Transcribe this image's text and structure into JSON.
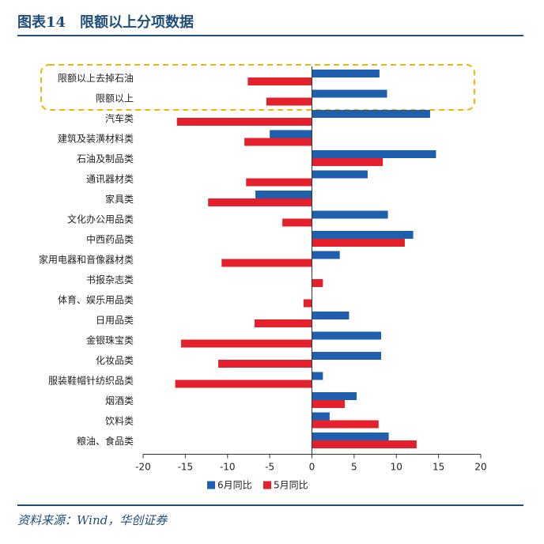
{
  "header": {
    "title": "图表14　限额以上分项数据"
  },
  "source": "资料来源：Wind，华创证券",
  "colors": {
    "june": "#1f5fad",
    "may": "#e3202b",
    "highlight": "#f2b705",
    "axis": "#333333",
    "brand": "#1f4e79"
  },
  "chart_data": {
    "type": "bar",
    "orientation": "horizontal",
    "title": "限额以上分项数据",
    "xlim": [
      -20,
      20
    ],
    "xticks": [
      -20,
      -15,
      -10,
      -5,
      0,
      5,
      10,
      15,
      20
    ],
    "legend_position": "bottom",
    "highlighted_categories": [
      "限额以上去掉石油",
      "限额以上"
    ],
    "categories": [
      "限额以上去掉石油",
      "限额以上",
      "汽车类",
      "建筑及装潢材料类",
      "石油及制品类",
      "通讯器材类",
      "家具类",
      "文化办公用品类",
      "中西药品类",
      "家用电器和音像器材类",
      "书报杂志类",
      "体育、娱乐用品类",
      "日用品类",
      "金银珠宝类",
      "化妆品类",
      "服装鞋帽针纺织品类",
      "烟酒类",
      "饮料类",
      "粮油、食品类"
    ],
    "series": [
      {
        "name": "6月同比",
        "values": [
          8.0,
          8.9,
          14.0,
          -5.0,
          14.7,
          6.6,
          -6.7,
          9.0,
          12.0,
          3.3,
          0.0,
          0.0,
          4.4,
          8.2,
          8.2,
          1.3,
          5.3,
          2.1,
          9.1
        ]
      },
      {
        "name": "5月同比",
        "values": [
          -7.6,
          -5.4,
          -16.0,
          -8.0,
          8.4,
          -7.8,
          -12.3,
          -3.5,
          11.0,
          -10.7,
          1.3,
          -1.0,
          -6.8,
          -15.5,
          -11.1,
          -16.2,
          3.9,
          7.9,
          12.4
        ]
      }
    ]
  }
}
